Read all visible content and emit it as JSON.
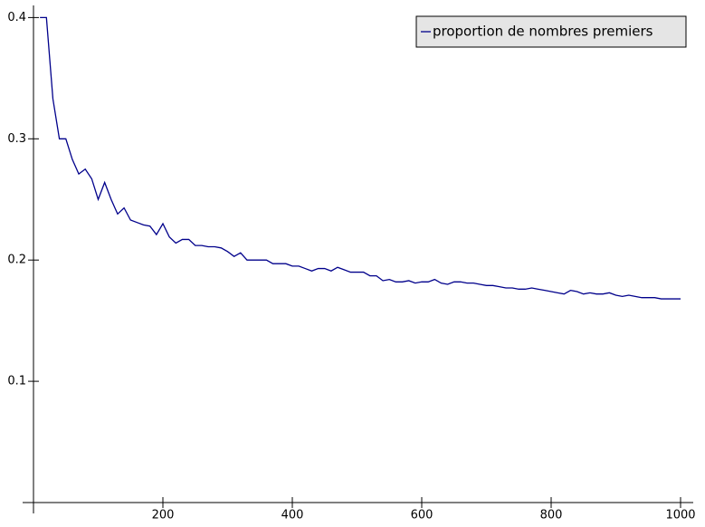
{
  "chart_data": {
    "type": "line",
    "x": [
      10,
      20,
      30,
      40,
      50,
      60,
      70,
      80,
      90,
      100,
      110,
      120,
      130,
      140,
      150,
      160,
      170,
      180,
      190,
      200,
      210,
      220,
      230,
      240,
      250,
      260,
      270,
      280,
      290,
      300,
      310,
      320,
      330,
      340,
      350,
      360,
      370,
      380,
      390,
      400,
      410,
      420,
      430,
      440,
      450,
      460,
      470,
      480,
      490,
      500,
      510,
      520,
      530,
      540,
      550,
      560,
      570,
      580,
      590,
      600,
      610,
      620,
      630,
      640,
      650,
      660,
      670,
      680,
      690,
      700,
      710,
      720,
      730,
      740,
      750,
      760,
      770,
      780,
      790,
      800,
      810,
      820,
      830,
      840,
      850,
      860,
      870,
      880,
      890,
      900,
      910,
      920,
      930,
      940,
      950,
      960,
      970,
      980,
      990,
      1000
    ],
    "series": [
      {
        "name": "proportion de nombres premiers",
        "color": "#00008b",
        "values": [
          0.4,
          0.4,
          0.333,
          0.3,
          0.3,
          0.283,
          0.271,
          0.275,
          0.267,
          0.25,
          0.264,
          0.25,
          0.238,
          0.243,
          0.233,
          0.231,
          0.229,
          0.228,
          0.221,
          0.23,
          0.219,
          0.214,
          0.217,
          0.217,
          0.212,
          0.212,
          0.211,
          0.211,
          0.21,
          0.207,
          0.203,
          0.206,
          0.2,
          0.2,
          0.2,
          0.2,
          0.197,
          0.197,
          0.197,
          0.195,
          0.195,
          0.193,
          0.191,
          0.193,
          0.193,
          0.191,
          0.194,
          0.192,
          0.19,
          0.19,
          0.19,
          0.187,
          0.187,
          0.183,
          0.184,
          0.182,
          0.182,
          0.183,
          0.181,
          0.182,
          0.182,
          0.184,
          0.181,
          0.18,
          0.182,
          0.182,
          0.181,
          0.181,
          0.18,
          0.179,
          0.179,
          0.178,
          0.177,
          0.177,
          0.176,
          0.176,
          0.177,
          0.176,
          0.175,
          0.174,
          0.173,
          0.172,
          0.175,
          0.174,
          0.172,
          0.173,
          0.172,
          0.172,
          0.173,
          0.171,
          0.17,
          0.171,
          0.17,
          0.169,
          0.169,
          0.169,
          0.168,
          0.168,
          0.168,
          0.168
        ]
      }
    ],
    "xlim": [
      0,
      1020
    ],
    "ylim": [
      0,
      0.41
    ],
    "xticks": [
      200,
      400,
      600,
      800,
      1000
    ],
    "yticks": [
      0.1,
      0.2,
      0.3,
      0.4
    ],
    "legend": "upper right"
  }
}
